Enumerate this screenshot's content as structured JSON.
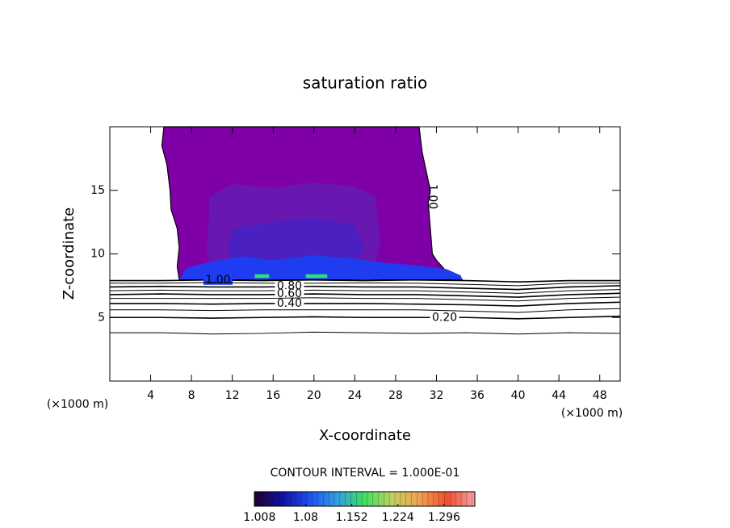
{
  "chart_data": {
    "type": "contour",
    "title": "saturation ratio",
    "xlabel": "X-coordinate",
    "ylabel": "Z-coordinate",
    "x_unit": "(×1000 m)",
    "y_unit": "(×1000 m)",
    "xlim": [
      0,
      50
    ],
    "ylim": [
      0,
      20
    ],
    "xticks": [
      4,
      8,
      12,
      16,
      20,
      24,
      28,
      32,
      36,
      40,
      44,
      48
    ],
    "yticks": [
      5,
      10,
      15
    ],
    "contour_interval_label": "CONTOUR INTERVAL = 1.000E-01",
    "regions": [
      {
        "color": "#8000a8",
        "x": [
          5.3,
          5.1,
          5.6,
          5.9,
          6.0,
          6.6,
          6.8,
          6.6,
          6.8,
          34.5,
          34.3,
          33.0,
          32.0,
          31.6,
          31.4,
          31.2,
          31.4,
          31.0,
          30.6,
          30.3
        ],
        "z": [
          20,
          18.5,
          17,
          15,
          13.5,
          12,
          10.5,
          9,
          8.0,
          8.0,
          8.2,
          8.6,
          9.5,
          10,
          12,
          14,
          15,
          16.5,
          18,
          20
        ]
      },
      {
        "color": "#6818b0",
        "x": [
          9.5,
          9.8,
          12,
          16,
          20,
          24,
          26,
          26.5,
          26,
          9.8
        ],
        "z": [
          10,
          14.5,
          15.5,
          15.2,
          15.6,
          15.3,
          14.5,
          11,
          9.3,
          9.3
        ]
      },
      {
        "color": "#4a20c0",
        "x": [
          11.5,
          12,
          16,
          20,
          24,
          25,
          24,
          12
        ],
        "z": [
          9.5,
          12,
          12.5,
          12.8,
          12.3,
          10.5,
          9.3,
          9.3
        ]
      },
      {
        "color": "#1f3cf0",
        "x": [
          6.8,
          7.5,
          10,
          13,
          16,
          20,
          24,
          27,
          30,
          33,
          34.4,
          34.5
        ],
        "z": [
          8.0,
          8.9,
          9.4,
          9.8,
          9.5,
          9.9,
          9.6,
          9.3,
          9.1,
          8.8,
          8.3,
          8.0
        ]
      },
      {
        "color": "#30e070",
        "x": [
          14.2,
          15.6,
          15.6,
          14.2
        ],
        "z": [
          8.1,
          8.1,
          8.4,
          8.4
        ]
      },
      {
        "color": "#30e070",
        "x": [
          19.2,
          21.3,
          21.3,
          19.2
        ],
        "z": [
          8.1,
          8.1,
          8.4,
          8.4
        ]
      }
    ],
    "x": [
      0,
      5,
      10,
      15,
      20,
      25,
      30,
      35,
      40,
      45,
      50
    ],
    "contours": [
      {
        "level": 1.0,
        "label": "1.00",
        "z": [
          7.9,
          7.9,
          7.95,
          7.9,
          7.95,
          7.9,
          7.95,
          7.9,
          7.8,
          7.9,
          7.9
        ]
      },
      {
        "level": 0.9,
        "z": [
          7.7,
          7.7,
          7.75,
          7.7,
          7.7,
          7.72,
          7.7,
          7.6,
          7.5,
          7.7,
          7.7
        ]
      },
      {
        "level": 0.8,
        "label": "0.80",
        "z": [
          7.4,
          7.45,
          7.4,
          7.4,
          7.45,
          7.4,
          7.4,
          7.3,
          7.2,
          7.4,
          7.5
        ]
      },
      {
        "level": 0.7,
        "z": [
          7.1,
          7.15,
          7.1,
          7.1,
          7.15,
          7.1,
          7.1,
          7.0,
          6.9,
          7.1,
          7.2
        ]
      },
      {
        "level": 0.6,
        "label": "0.60",
        "z": [
          6.8,
          6.85,
          6.8,
          6.8,
          6.85,
          6.8,
          6.8,
          6.7,
          6.6,
          6.8,
          6.9
        ]
      },
      {
        "level": 0.5,
        "z": [
          6.5,
          6.5,
          6.5,
          6.5,
          6.55,
          6.5,
          6.5,
          6.4,
          6.3,
          6.5,
          6.6
        ]
      },
      {
        "level": 0.4,
        "label": "0.40",
        "z": [
          6.1,
          6.1,
          6.05,
          6.1,
          6.1,
          6.1,
          6.05,
          6.0,
          5.9,
          6.1,
          6.2
        ]
      },
      {
        "level": 0.3,
        "z": [
          5.6,
          5.6,
          5.55,
          5.6,
          5.6,
          5.6,
          5.6,
          5.5,
          5.4,
          5.6,
          5.7
        ]
      },
      {
        "level": 0.2,
        "label": "0.20",
        "z": [
          5.0,
          5.0,
          4.95,
          5.0,
          5.05,
          5.0,
          5.0,
          5.0,
          4.9,
          5.0,
          5.1
        ]
      },
      {
        "level": 0.1,
        "z": [
          3.8,
          3.8,
          3.7,
          3.75,
          3.85,
          3.8,
          3.75,
          3.8,
          3.7,
          3.8,
          3.75
        ]
      }
    ],
    "colormap": [
      "#200030",
      "#1010a0",
      "#2050f0",
      "#30a0e0",
      "#40e060",
      "#c0d060",
      "#f0a050",
      "#f05030",
      "#f8a0a0"
    ],
    "clim": [
      1.0,
      1.344
    ],
    "cticks": [
      1.008,
      1.08,
      1.152,
      1.224,
      1.296
    ]
  }
}
